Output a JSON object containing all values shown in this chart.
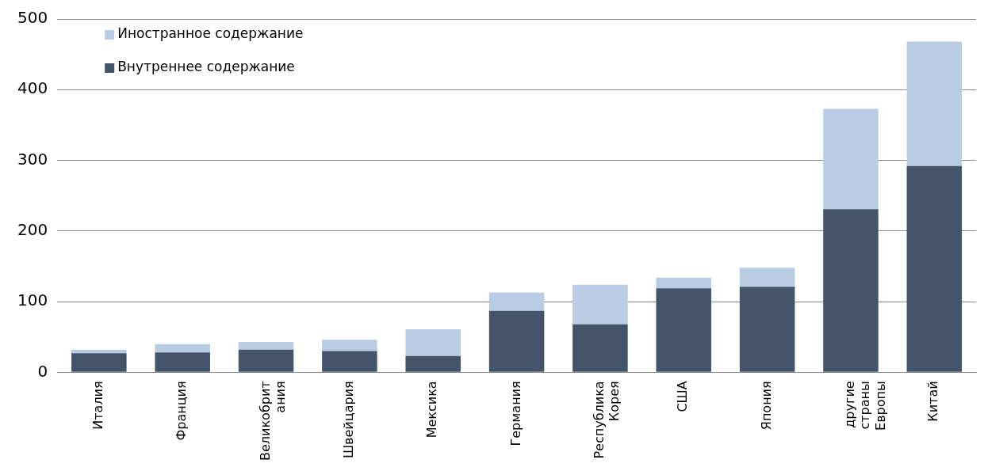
{
  "chart_data": {
    "type": "bar",
    "stacked": true,
    "categories": [
      "Италия",
      "Франция",
      "Великобрит\nания",
      "Швейцария",
      "Мексика",
      "Германия",
      "Республика\nКорея",
      "США",
      "Япония",
      "другие\nстраны\nЕвропы",
      "Китай"
    ],
    "series": [
      {
        "name": "Внутреннее содержание",
        "color": "#44546a",
        "values": [
          27,
          28,
          32,
          30,
          23,
          87,
          68,
          119,
          121,
          231,
          292
        ]
      },
      {
        "name": "Иностранное содержание",
        "color": "#b8cce4",
        "values": [
          5,
          12,
          11,
          16,
          38,
          26,
          56,
          15,
          27,
          142,
          176
        ]
      }
    ],
    "ylim": [
      0,
      500
    ],
    "yticks": [
      0,
      100,
      200,
      300,
      400,
      500
    ],
    "grid": "y",
    "legend": "top left"
  }
}
